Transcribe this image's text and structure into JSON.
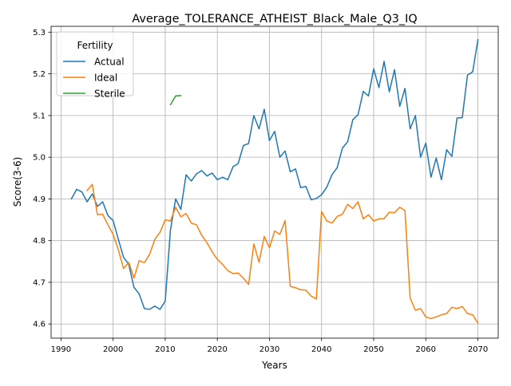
{
  "chart_data": {
    "type": "line",
    "title": "Average_TOLERANCE_ATHEIST_Black_Male_Q3_IQ",
    "xlabel": "Years",
    "ylabel": "Score(3-6)",
    "xlim": [
      1988.1,
      2073.9
    ],
    "ylim": [
      4.566,
      5.314
    ],
    "x_ticks": [
      1990,
      2000,
      2010,
      2020,
      2030,
      2040,
      2050,
      2060,
      2070
    ],
    "y_ticks": [
      4.6,
      4.7,
      4.8,
      4.9,
      5.0,
      5.1,
      5.2,
      5.3
    ],
    "x_tick_labels": [
      "1990",
      "2000",
      "2010",
      "2020",
      "2030",
      "2040",
      "2050",
      "2060",
      "2070"
    ],
    "y_tick_labels": [
      "4.6",
      "4.7",
      "4.8",
      "4.9",
      "5.0",
      "5.1",
      "5.2",
      "5.3"
    ],
    "grid": true,
    "legend": {
      "title": "Fertility",
      "position": "top-left"
    },
    "series": [
      {
        "name": "Actual",
        "color": "#1f77b4",
        "x": [
          1992,
          1993,
          1994,
          1995,
          1996,
          1997,
          1998,
          1999,
          2000,
          2001,
          2002,
          2003,
          2004,
          2005,
          2006,
          2007,
          2008,
          2009,
          2010,
          2011,
          2012,
          2013,
          2014,
          2015,
          2016,
          2017,
          2018,
          2019,
          2020,
          2021,
          2022,
          2023,
          2024,
          2025,
          2026,
          2027,
          2028,
          2029,
          2030,
          2031,
          2032,
          2033,
          2034,
          2035,
          2036,
          2037,
          2038,
          2039,
          2040,
          2041,
          2042,
          2043,
          2044,
          2045,
          2046,
          2047,
          2048,
          2049,
          2050,
          2051,
          2052,
          2053,
          2054,
          2055,
          2056,
          2057,
          2058,
          2059,
          2060,
          2061,
          2062,
          2063,
          2064,
          2065,
          2066,
          2067,
          2068,
          2069,
          2070
        ],
        "values": [
          4.9,
          4.923,
          4.917,
          4.893,
          4.912,
          4.882,
          4.893,
          4.86,
          4.848,
          4.803,
          4.76,
          4.743,
          4.688,
          4.672,
          4.637,
          4.635,
          4.643,
          4.635,
          4.655,
          4.825,
          4.9,
          4.875,
          4.958,
          4.943,
          4.96,
          4.968,
          4.955,
          4.962,
          4.946,
          4.952,
          4.946,
          4.977,
          4.985,
          5.028,
          5.033,
          5.1,
          5.068,
          5.115,
          5.04,
          5.062,
          5.0,
          5.015,
          4.965,
          4.972,
          4.927,
          4.93,
          4.898,
          4.901,
          4.91,
          4.928,
          4.958,
          4.975,
          5.022,
          5.037,
          5.09,
          5.102,
          5.158,
          5.147,
          5.212,
          5.167,
          5.23,
          5.157,
          5.21,
          5.122,
          5.165,
          5.068,
          5.1,
          5.0,
          5.034,
          4.952,
          4.998,
          4.946,
          5.018,
          5.002,
          5.094,
          5.095,
          5.197,
          5.205,
          5.282
        ]
      },
      {
        "name": "Ideal",
        "color": "#ff7f0e",
        "x": [
          1995,
          1996,
          1997,
          1998,
          1999,
          2000,
          2001,
          2002,
          2003,
          2004,
          2005,
          2006,
          2007,
          2008,
          2009,
          2010,
          2011,
          2012,
          2013,
          2014,
          2015,
          2016,
          2017,
          2018,
          2019,
          2020,
          2021,
          2022,
          2023,
          2024,
          2025,
          2026,
          2027,
          2028,
          2029,
          2030,
          2031,
          2032,
          2033,
          2034,
          2035,
          2036,
          2037,
          2038,
          2039,
          2040,
          2041,
          2042,
          2043,
          2044,
          2045,
          2046,
          2047,
          2048,
          2049,
          2050,
          2051,
          2052,
          2053,
          2054,
          2055,
          2056,
          2057,
          2058,
          2059,
          2060,
          2061,
          2062,
          2063,
          2064,
          2065,
          2066,
          2067,
          2068,
          2069,
          2070
        ],
        "values": [
          4.92,
          4.935,
          4.862,
          4.863,
          4.838,
          4.815,
          4.778,
          4.733,
          4.748,
          4.71,
          4.752,
          4.747,
          4.767,
          4.803,
          4.82,
          4.85,
          4.847,
          4.88,
          4.857,
          4.865,
          4.842,
          4.838,
          4.813,
          4.795,
          4.773,
          4.755,
          4.743,
          4.728,
          4.721,
          4.722,
          4.71,
          4.695,
          4.792,
          4.748,
          4.81,
          4.783,
          4.823,
          4.815,
          4.848,
          4.69,
          4.687,
          4.682,
          4.681,
          4.667,
          4.66,
          4.87,
          4.847,
          4.842,
          4.858,
          4.863,
          4.887,
          4.877,
          4.893,
          4.852,
          4.862,
          4.847,
          4.852,
          4.853,
          4.868,
          4.867,
          4.88,
          4.872,
          4.662,
          4.633,
          4.637,
          4.617,
          4.613,
          4.617,
          4.622,
          4.625,
          4.64,
          4.637,
          4.642,
          4.625,
          4.622,
          4.602
        ]
      },
      {
        "name": "Sterile",
        "color": "#2ca02c",
        "x": [
          2011,
          2012,
          2013
        ],
        "values": [
          5.126,
          5.147,
          5.148
        ]
      }
    ]
  }
}
